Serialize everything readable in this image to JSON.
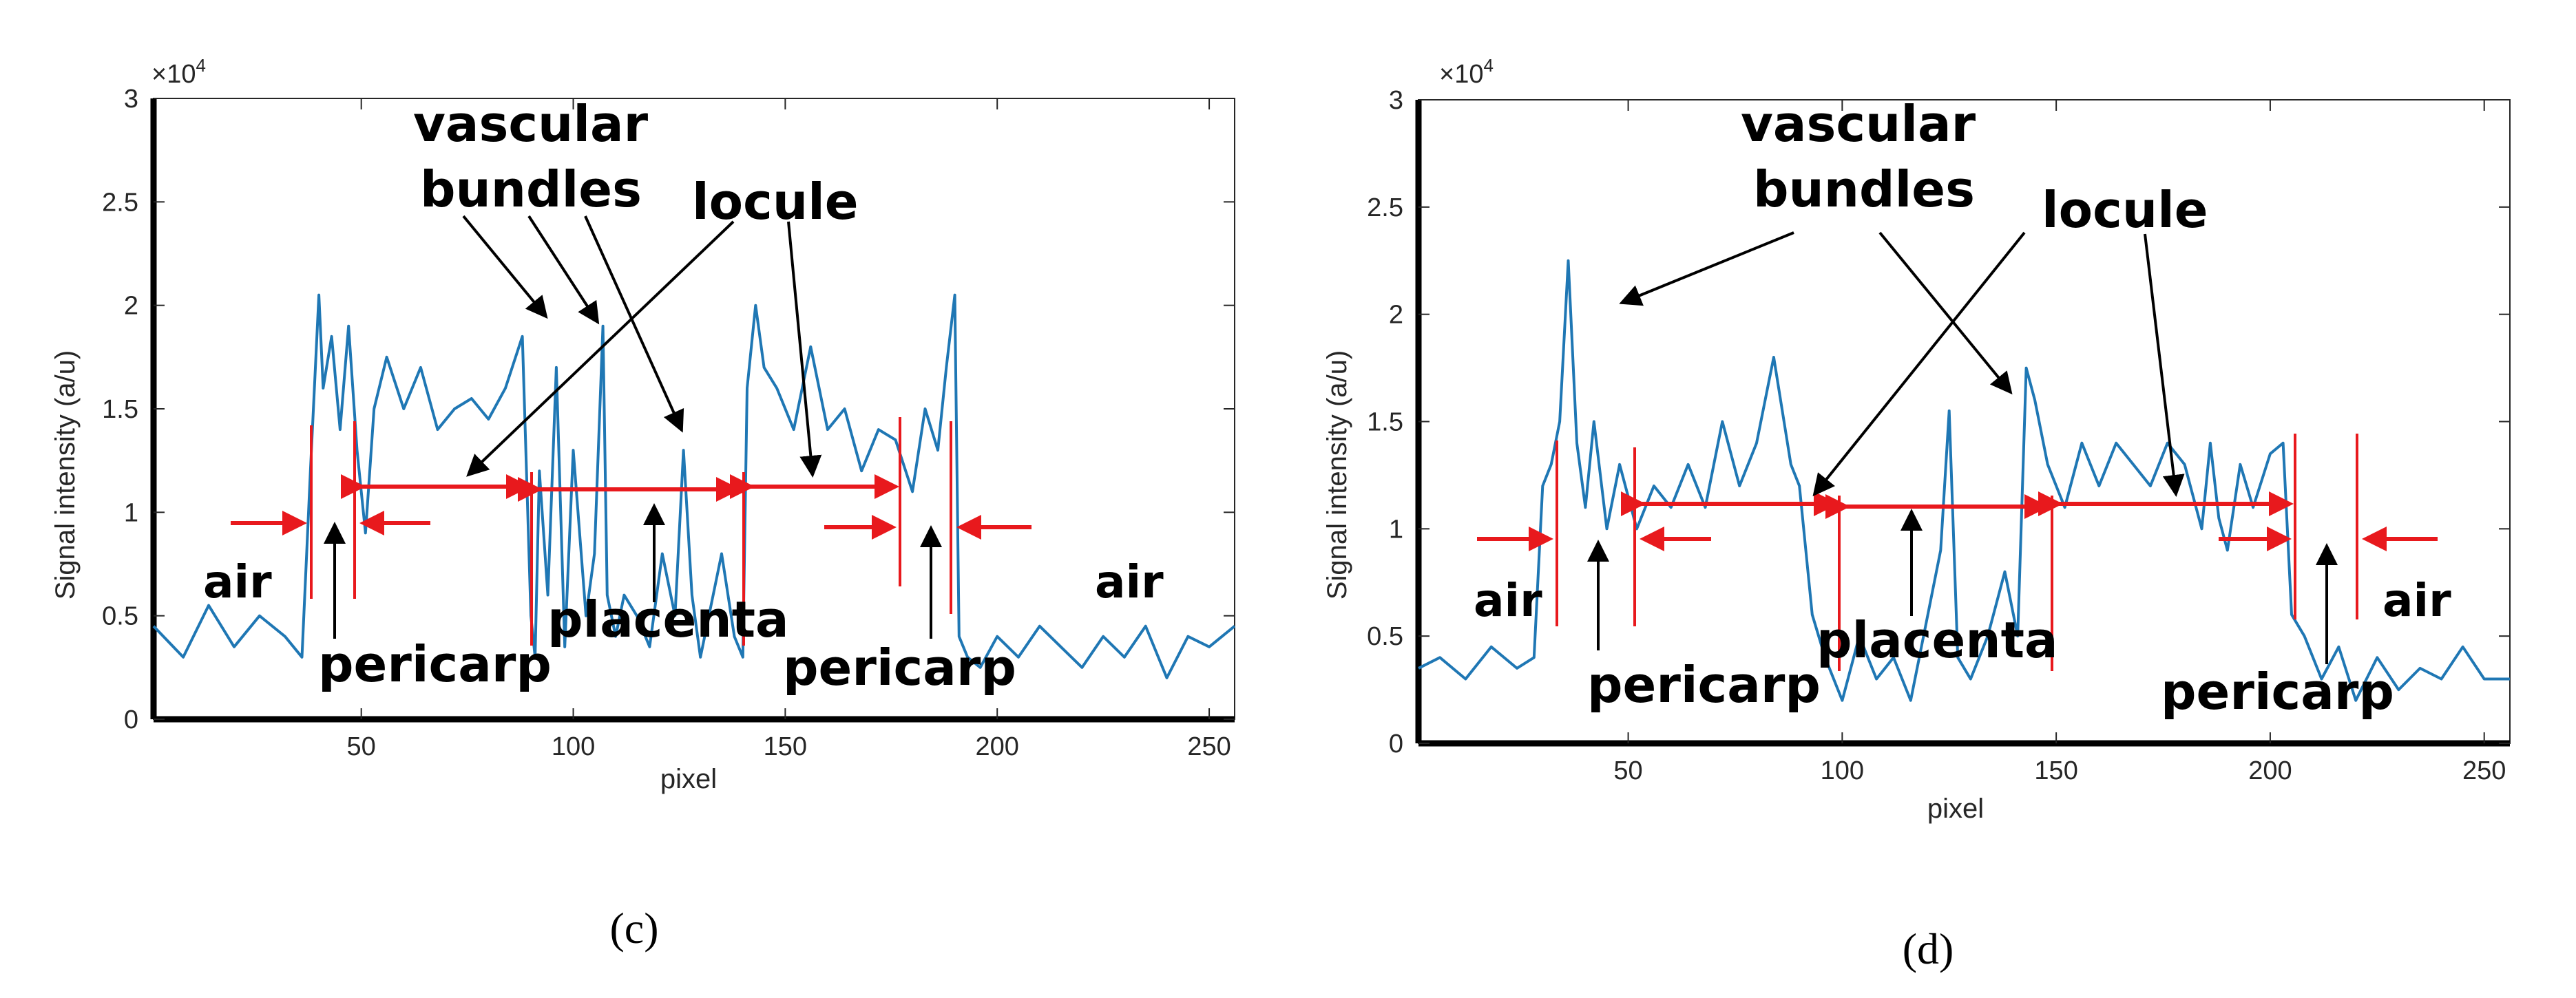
{
  "chart_data": [
    {
      "type": "line",
      "panel_label": "(c)",
      "xlabel": "pixel",
      "ylabel": "Signal intensity (a/u)",
      "y_exponent": "×10",
      "y_exponent_power": "4",
      "xlim": [
        1,
        256
      ],
      "ylim": [
        0,
        3
      ],
      "xticks": [
        50,
        100,
        150,
        200,
        250
      ],
      "yticks": [
        0,
        0.5,
        1,
        1.5,
        2,
        2.5,
        3
      ],
      "xtick_labels": [
        "50",
        "100",
        "150",
        "200",
        "250"
      ],
      "ytick_labels": [
        "0",
        "0.5",
        "1",
        "1.5",
        "2",
        "2.5",
        "3"
      ],
      "series": [
        {
          "name": "signal",
          "color": "#1f77b4",
          "x": [
            1,
            8,
            14,
            20,
            26,
            32,
            36,
            38,
            40,
            41,
            43,
            45,
            47,
            49,
            51,
            53,
            56,
            60,
            64,
            68,
            72,
            76,
            80,
            84,
            88,
            90,
            91,
            92,
            94,
            96,
            98,
            100,
            103,
            105,
            107,
            108,
            110,
            112,
            115,
            118,
            121,
            124,
            126,
            128,
            130,
            132,
            135,
            138,
            140,
            141,
            143,
            145,
            148,
            152,
            156,
            160,
            164,
            168,
            172,
            176,
            180,
            183,
            186,
            188,
            190,
            191,
            193,
            196,
            200,
            205,
            210,
            215,
            220,
            225,
            230,
            235,
            240,
            245,
            250,
            256
          ],
          "y": [
            0.45,
            0.3,
            0.55,
            0.35,
            0.5,
            0.4,
            0.3,
            1.2,
            2.05,
            1.6,
            1.85,
            1.4,
            1.9,
            1.3,
            0.9,
            1.5,
            1.75,
            1.5,
            1.7,
            1.4,
            1.5,
            1.55,
            1.45,
            1.6,
            1.85,
            0.5,
            0.3,
            1.2,
            0.6,
            1.7,
            0.35,
            1.3,
            0.5,
            0.8,
            1.9,
            0.6,
            0.4,
            0.6,
            0.5,
            0.35,
            0.8,
            0.5,
            1.3,
            0.6,
            0.3,
            0.5,
            0.8,
            0.4,
            0.3,
            1.6,
            2.0,
            1.7,
            1.6,
            1.4,
            1.8,
            1.4,
            1.5,
            1.2,
            1.4,
            1.35,
            1.1,
            1.5,
            1.3,
            1.7,
            2.05,
            0.4,
            0.3,
            0.25,
            0.4,
            0.3,
            0.45,
            0.35,
            0.25,
            0.4,
            0.3,
            0.45,
            0.2,
            0.4,
            0.35,
            0.45
          ]
        }
      ],
      "annotations": {
        "vascular_line1": "vascular",
        "vascular_line2": "bundles",
        "locule": "locule",
        "air_left": "air",
        "air_right": "air",
        "pericarp_left": "pericarp",
        "pericarp_right": "pericarp",
        "placenta": "placenta"
      }
    },
    {
      "type": "line",
      "panel_label": "(d)",
      "xlabel": "pixel",
      "ylabel": "Signal intensity (a/u)",
      "y_exponent": "×10",
      "y_exponent_power": "4",
      "xlim": [
        1,
        256
      ],
      "ylim": [
        0,
        3
      ],
      "xticks": [
        50,
        100,
        150,
        200,
        250
      ],
      "yticks": [
        0,
        0.5,
        1,
        1.5,
        2,
        2.5,
        3
      ],
      "xtick_labels": [
        "50",
        "100",
        "150",
        "200",
        "250"
      ],
      "ytick_labels": [
        "0",
        "0.5",
        "1",
        "1.5",
        "2",
        "2.5",
        "3"
      ],
      "series": [
        {
          "name": "signal",
          "color": "#1f77b4",
          "x": [
            1,
            6,
            12,
            18,
            24,
            28,
            30,
            32,
            34,
            36,
            38,
            40,
            42,
            45,
            48,
            52,
            56,
            60,
            64,
            68,
            72,
            76,
            80,
            84,
            88,
            90,
            93,
            96,
            100,
            104,
            108,
            112,
            116,
            120,
            123,
            125,
            127,
            130,
            134,
            138,
            141,
            143,
            145,
            148,
            152,
            156,
            160,
            164,
            168,
            172,
            176,
            180,
            184,
            186,
            188,
            190,
            193,
            196,
            200,
            203,
            205,
            208,
            212,
            216,
            220,
            225,
            230,
            235,
            240,
            245,
            250,
            256
          ],
          "y": [
            0.35,
            0.4,
            0.3,
            0.45,
            0.35,
            0.4,
            1.2,
            1.3,
            1.5,
            2.25,
            1.4,
            1.1,
            1.5,
            1.0,
            1.3,
            1.0,
            1.2,
            1.1,
            1.3,
            1.1,
            1.5,
            1.2,
            1.4,
            1.8,
            1.3,
            1.2,
            0.6,
            0.4,
            0.2,
            0.5,
            0.3,
            0.4,
            0.2,
            0.6,
            0.9,
            1.55,
            0.4,
            0.3,
            0.5,
            0.8,
            0.5,
            1.75,
            1.6,
            1.3,
            1.1,
            1.4,
            1.2,
            1.4,
            1.3,
            1.2,
            1.4,
            1.3,
            1.0,
            1.4,
            1.05,
            0.9,
            1.3,
            1.1,
            1.35,
            1.4,
            0.6,
            0.5,
            0.3,
            0.45,
            0.2,
            0.4,
            0.25,
            0.35,
            0.3,
            0.45,
            0.3,
            0.3
          ]
        }
      ],
      "annotations": {
        "vascular_line1": "vascular",
        "vascular_line2": "bundles",
        "locule": "locule",
        "air_left": "air",
        "air_right": "air",
        "pericarp_left": "pericarp",
        "pericarp_right": "pericarp",
        "placenta": "placenta"
      }
    }
  ]
}
